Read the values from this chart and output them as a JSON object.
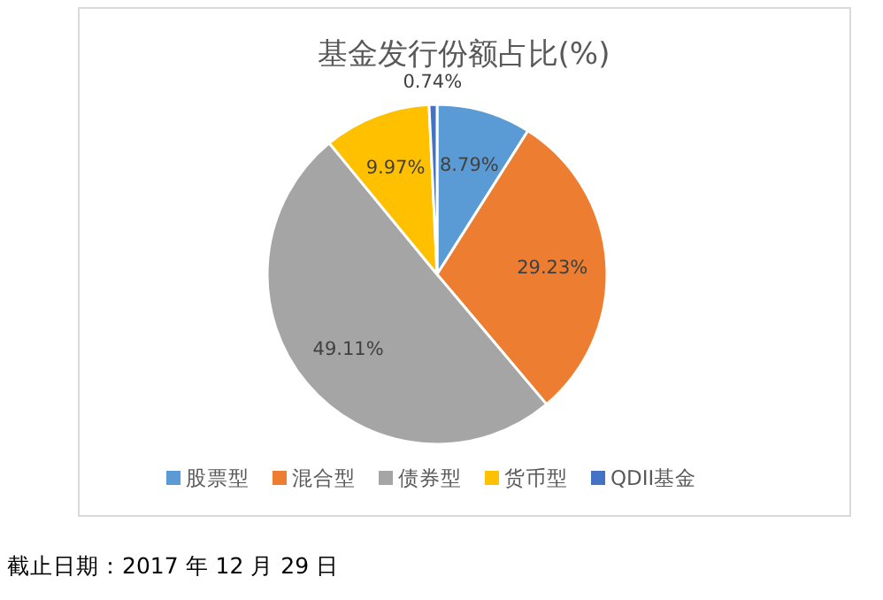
{
  "chart_data": {
    "type": "pie",
    "title": "基金发行份额占比(%)",
    "categories": [
      "股票型",
      "混合型",
      "债券型",
      "货币型",
      "QDII基金"
    ],
    "values": [
      8.79,
      29.23,
      49.11,
      9.97,
      0.74
    ],
    "colors": [
      "#5b9bd5",
      "#ed7d31",
      "#a5a5a5",
      "#ffc000",
      "#4472c4"
    ],
    "value_labels": [
      "8.79%",
      "29.23%",
      "49.11%",
      "9.97%",
      "0.74%"
    ],
    "legend": "bottom",
    "annotations": [
      "截止日期：2017 年 12 月 29 日"
    ]
  }
}
